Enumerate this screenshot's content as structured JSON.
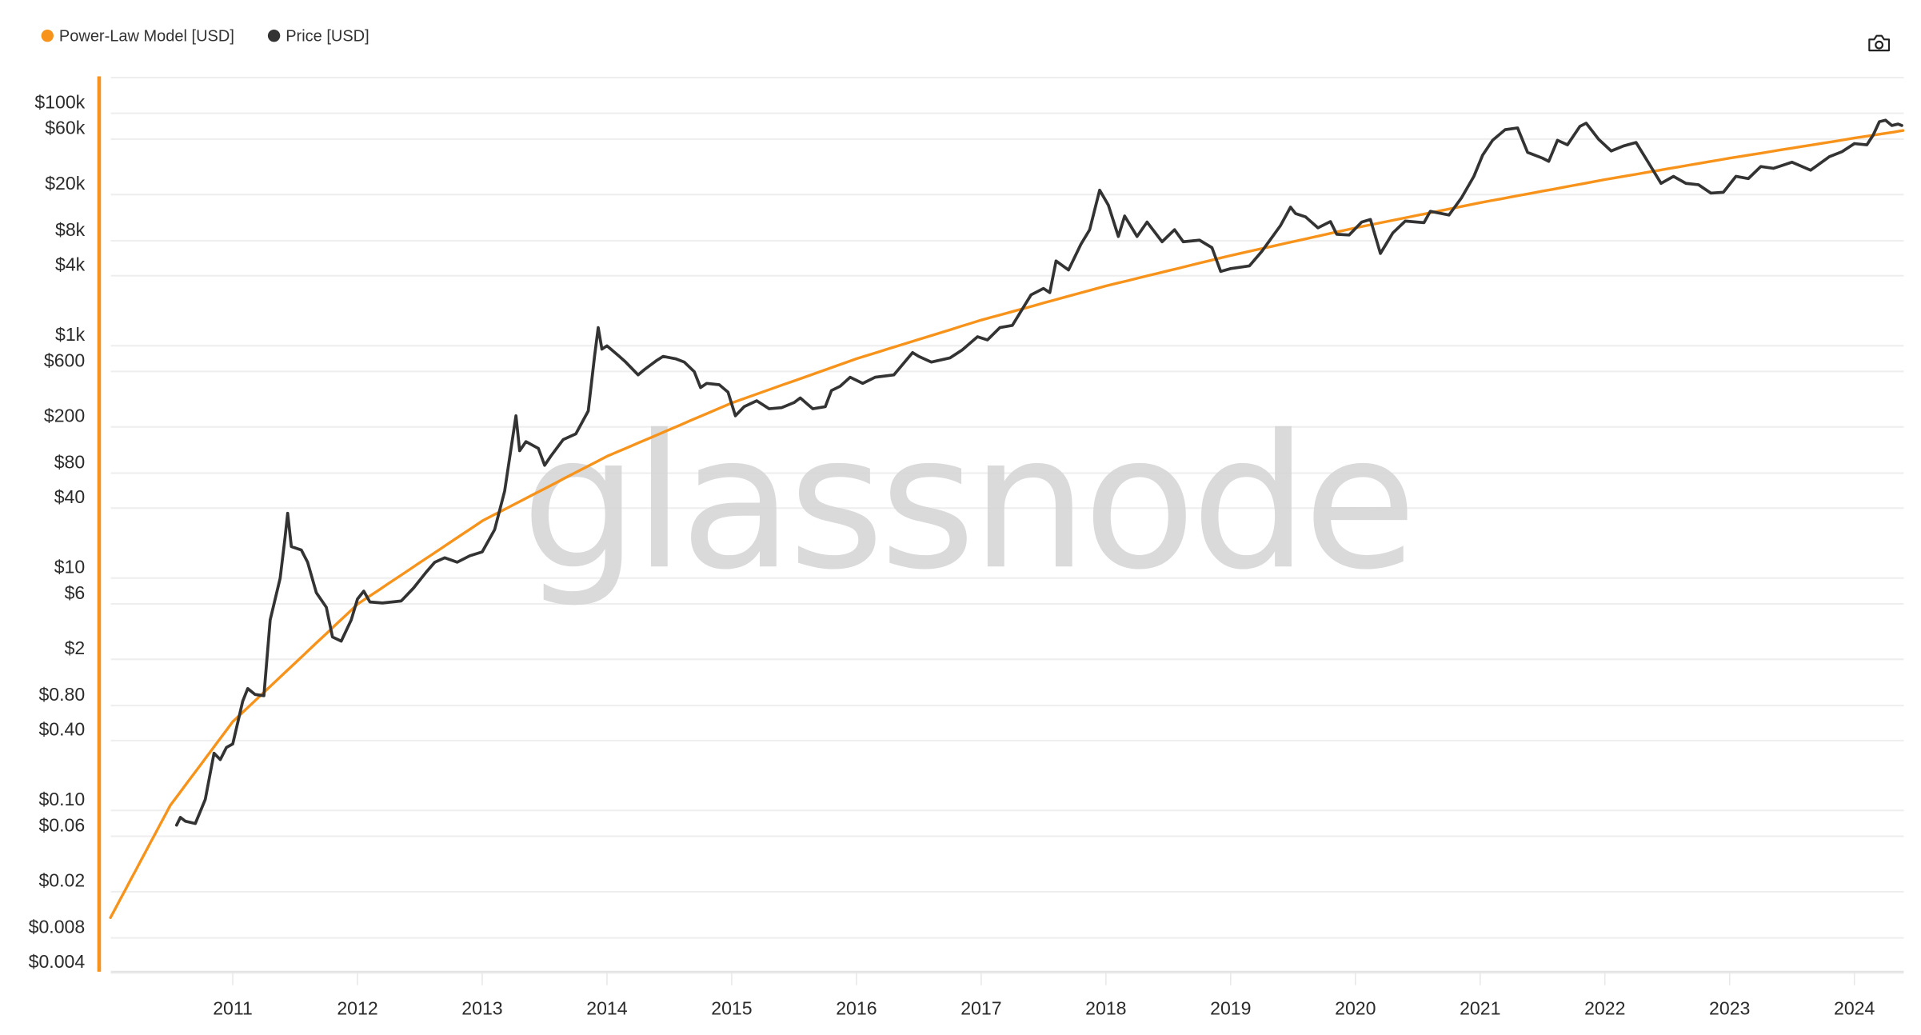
{
  "chart_data": {
    "type": "line",
    "title": "",
    "xlabel": "",
    "ylabel": "",
    "y_scale": "log",
    "ylim": [
      0.004,
      100000
    ],
    "xlim": [
      2010.02,
      2024.39
    ],
    "grid": true,
    "legend_position": "top-left",
    "watermark": "glassnode",
    "x_ticks": {
      "values": [
        2011,
        2012,
        2013,
        2014,
        2015,
        2016,
        2017,
        2018,
        2019,
        2020,
        2021,
        2022,
        2023,
        2024
      ],
      "labels": [
        "2011",
        "2012",
        "2013",
        "2014",
        "2015",
        "2016",
        "2017",
        "2018",
        "2019",
        "2020",
        "2021",
        "2022",
        "2023",
        "2024"
      ]
    },
    "y_ticks": {
      "values": [
        100000,
        60000,
        20000,
        8000,
        4000,
        1000,
        600,
        200,
        80,
        40,
        10,
        6,
        2,
        0.8,
        0.4,
        0.1,
        0.06,
        0.02,
        0.008,
        0.004
      ],
      "labels": [
        "$100k",
        "$60k",
        "$20k",
        "$8k",
        "$4k",
        "$1k",
        "$600",
        "$200",
        "$80",
        "$40",
        "$10",
        "$6",
        "$2",
        "$0.80",
        "$0.40",
        "$0.10",
        "$0.06",
        "$0.02",
        "$0.008",
        "$0.004"
      ]
    },
    "series": [
      {
        "name": "Power-Law Model [USD]",
        "color": "#f7931a",
        "x": [
          2010.02,
          2010.5,
          2011,
          2012,
          2013,
          2014,
          2015,
          2016,
          2017,
          2018,
          2019,
          2020,
          2021,
          2022,
          2023,
          2024,
          2024.39
        ],
        "y": [
          0.0096,
          0.089,
          0.466,
          4.78,
          24.9,
          89.7,
          258,
          620,
          1333,
          2624,
          4797,
          8297,
          13650,
          21580,
          33000,
          49100,
          57000
        ]
      },
      {
        "name": "Price [USD]",
        "color": "#333333",
        "x": [
          2010.55,
          2010.58,
          2010.62,
          2010.7,
          2010.78,
          2010.85,
          2010.9,
          2010.95,
          2011.0,
          2011.08,
          2011.12,
          2011.18,
          2011.25,
          2011.3,
          2011.38,
          2011.42,
          2011.44,
          2011.47,
          2011.55,
          2011.6,
          2011.67,
          2011.75,
          2011.8,
          2011.87,
          2011.95,
          2012.0,
          2012.05,
          2012.1,
          2012.2,
          2012.35,
          2012.45,
          2012.55,
          2012.62,
          2012.7,
          2012.8,
          2012.9,
          2013.0,
          2013.1,
          2013.18,
          2013.27,
          2013.3,
          2013.35,
          2013.45,
          2013.5,
          2013.55,
          2013.65,
          2013.75,
          2013.85,
          2013.9,
          2013.93,
          2013.96,
          2014.0,
          2014.1,
          2014.15,
          2014.25,
          2014.3,
          2014.4,
          2014.45,
          2014.55,
          2014.62,
          2014.7,
          2014.75,
          2014.8,
          2014.9,
          2014.97,
          2015.03,
          2015.1,
          2015.2,
          2015.3,
          2015.4,
          2015.5,
          2015.55,
          2015.65,
          2015.75,
          2015.8,
          2015.87,
          2015.95,
          2016.05,
          2016.15,
          2016.3,
          2016.45,
          2016.5,
          2016.6,
          2016.75,
          2016.85,
          2016.97,
          2017.05,
          2017.15,
          2017.25,
          2017.4,
          2017.5,
          2017.55,
          2017.6,
          2017.7,
          2017.8,
          2017.87,
          2017.95,
          2018.02,
          2018.1,
          2018.15,
          2018.25,
          2018.33,
          2018.45,
          2018.55,
          2018.62,
          2018.75,
          2018.85,
          2018.92,
          2019.0,
          2019.15,
          2019.25,
          2019.4,
          2019.48,
          2019.52,
          2019.6,
          2019.7,
          2019.8,
          2019.85,
          2019.95,
          2020.05,
          2020.12,
          2020.2,
          2020.3,
          2020.4,
          2020.55,
          2020.6,
          2020.75,
          2020.85,
          2020.95,
          2021.02,
          2021.1,
          2021.2,
          2021.3,
          2021.38,
          2021.5,
          2021.55,
          2021.62,
          2021.7,
          2021.8,
          2021.85,
          2021.95,
          2022.05,
          2022.15,
          2022.25,
          2022.35,
          2022.45,
          2022.55,
          2022.65,
          2022.75,
          2022.85,
          2022.95,
          2023.05,
          2023.15,
          2023.25,
          2023.35,
          2023.5,
          2023.65,
          2023.8,
          2023.9,
          2024.0,
          2024.1,
          2024.15,
          2024.2,
          2024.25,
          2024.3,
          2024.35,
          2024.38
        ],
        "y": [
          0.06,
          0.07,
          0.065,
          0.062,
          0.1,
          0.25,
          0.22,
          0.28,
          0.3,
          0.7,
          0.9,
          0.8,
          0.78,
          3.5,
          8,
          18,
          29,
          15,
          14,
          11,
          6,
          4.5,
          2.5,
          2.3,
          3.5,
          5.3,
          6.2,
          5,
          4.9,
          5.1,
          6.6,
          9,
          11,
          12,
          11,
          12.5,
          13.5,
          21,
          45,
          200,
          100,
          120,
          105,
          75,
          90,
          125,
          140,
          220,
          650,
          1150,
          750,
          800,
          650,
          580,
          450,
          500,
          600,
          650,
          620,
          580,
          480,
          350,
          380,
          370,
          320,
          200,
          240,
          270,
          230,
          235,
          260,
          285,
          230,
          240,
          330,
          360,
          430,
          380,
          430,
          450,
          700,
          650,
          580,
          630,
          740,
          960,
          900,
          1150,
          1200,
          2200,
          2500,
          2300,
          4300,
          3600,
          6000,
          8000,
          17500,
          13000,
          7000,
          10500,
          7000,
          9300,
          6300,
          8000,
          6300,
          6500,
          5600,
          3500,
          3700,
          3900,
          5200,
          8700,
          12500,
          11000,
          10300,
          8300,
          9400,
          7300,
          7200,
          9300,
          9800,
          5000,
          7500,
          9500,
          9200,
          11500,
          10700,
          15000,
          23000,
          35000,
          47000,
          58000,
          60000,
          37000,
          33000,
          31000,
          47000,
          43000,
          62000,
          66000,
          48000,
          38000,
          42000,
          45000,
          30000,
          20000,
          23000,
          20000,
          19500,
          16500,
          16800,
          23000,
          22000,
          28000,
          27000,
          30500,
          26000,
          34000,
          37500,
          44000,
          43000,
          52000,
          68000,
          70000,
          63000,
          65000,
          63000
        ]
      }
    ]
  },
  "legend": {
    "items": [
      {
        "label": "Power-Law Model [USD]",
        "color": "#f7931a"
      },
      {
        "label": "Price [USD]",
        "color": "#333333"
      }
    ]
  },
  "toolbar": {
    "screenshot_icon": "camera-icon"
  }
}
